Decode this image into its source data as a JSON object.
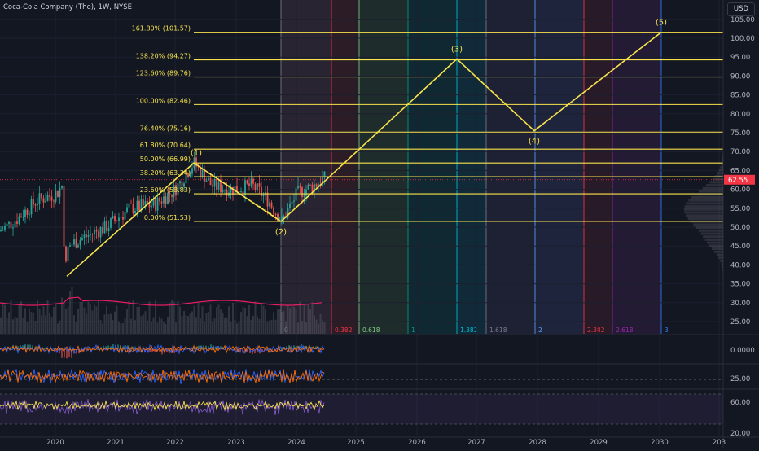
{
  "header": {
    "symbol": "Coca-Cola Company (The), 1W, NYSE",
    "currency_button": "USD"
  },
  "price_axis": {
    "labels": [
      "105.00",
      "100.00",
      "95.00",
      "90.00",
      "85.00",
      "80.00",
      "75.00",
      "70.00",
      "65.00",
      "60.00",
      "55.00",
      "50.00",
      "45.00",
      "40.00",
      "35.00",
      "30.00",
      "25.00"
    ],
    "current_price": "62.55",
    "current_price_color": "#f23645"
  },
  "time_axis": {
    "labels": [
      "2020",
      "2021",
      "2022",
      "2023",
      "2024",
      "2025",
      "2026",
      "2027",
      "2028",
      "2029",
      "2030",
      "203"
    ]
  },
  "fib_retracement": {
    "color": "#f7e24c",
    "levels": [
      "161.80% (101.57)",
      "138.20% (94.27)",
      "123.60% (89.76)",
      "100.00% (82.46)",
      "76.40% (75.16)",
      "61.80% (70.64)",
      "50.00% (66.99)",
      "38.20% (63.34)",
      "23.60% (58.83)",
      "0.00% (51.53)"
    ]
  },
  "fib_time_zones": {
    "labels": [
      "0",
      "0.382",
      "0.618",
      "1",
      "1.382",
      "1.618",
      "2",
      "2.382",
      "2.618",
      "3"
    ],
    "colors": [
      "#787b86",
      "#f23645",
      "#81c784",
      "#089981",
      "#00bcd4",
      "#787b86",
      "#5b9cf6",
      "#f23645",
      "#9c27b0",
      "#3179f5"
    ]
  },
  "elliott_wave": {
    "color": "#f7e24c",
    "labels": [
      "(1)",
      "(2)",
      "(3)",
      "(4)",
      "(5)"
    ]
  },
  "indicators": {
    "macd_axis_label": "0.0000",
    "stoch_axis_label": "25.00",
    "rsi_axis_labels": [
      "60.00",
      "20.00"
    ]
  }
}
